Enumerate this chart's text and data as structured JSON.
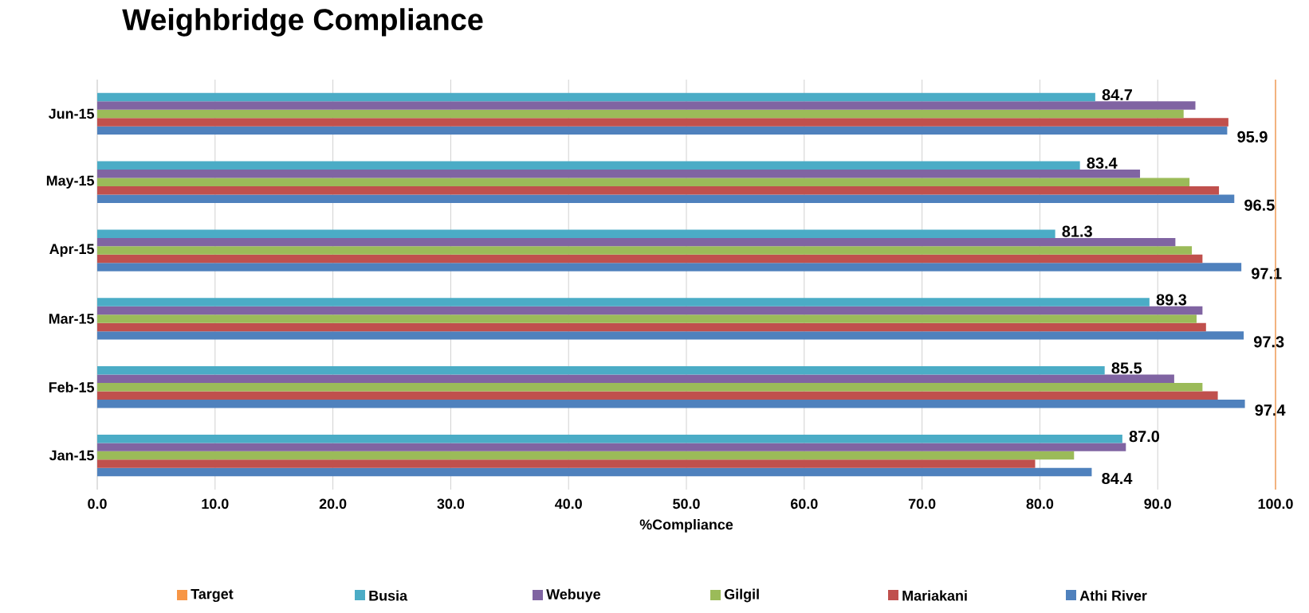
{
  "chart_data": {
    "type": "bar",
    "orientation": "horizontal",
    "title": "Weighbridge Compliance",
    "xlabel": "%Compliance",
    "categories": [
      "Jun-15",
      "May-15",
      "Apr-15",
      "Mar-15",
      "Feb-15",
      "Jan-15"
    ],
    "series": [
      {
        "name": "Athi River",
        "color": "#4f81bd",
        "values": [
          95.9,
          96.5,
          97.1,
          97.3,
          97.4,
          84.4
        ],
        "value_labels": [
          "95.9",
          "96.5",
          "97.1",
          "97.3",
          "97.4",
          "84.4"
        ]
      },
      {
        "name": "Mariakani",
        "color": "#c0504d",
        "values": [
          96.0,
          95.2,
          93.8,
          94.1,
          95.1,
          79.6
        ]
      },
      {
        "name": "Gilgil",
        "color": "#9bbb59",
        "values": [
          92.2,
          92.7,
          92.9,
          93.3,
          93.8,
          82.9
        ]
      },
      {
        "name": "Webuye",
        "color": "#8064a2",
        "values": [
          93.2,
          88.5,
          91.5,
          93.8,
          91.4,
          87.3
        ]
      },
      {
        "name": "Busia",
        "color": "#4bacc6",
        "values": [
          84.7,
          83.4,
          81.3,
          89.3,
          85.5,
          87.0
        ],
        "value_labels": [
          "84.7",
          "83.4",
          "81.3",
          "89.3",
          "85.5",
          "87.0"
        ]
      }
    ],
    "ref_lines": [
      {
        "axis": "x",
        "value": 100,
        "label": "Target",
        "color": "#f79646"
      }
    ],
    "xlim": [
      0,
      100
    ],
    "xticks": [
      {
        "value": 0,
        "label": "0.0"
      },
      {
        "value": 10,
        "label": "10.0"
      },
      {
        "value": 20,
        "label": "20.0"
      },
      {
        "value": 30,
        "label": "30.0"
      },
      {
        "value": 40,
        "label": "40.0"
      },
      {
        "value": 50,
        "label": "50.0"
      },
      {
        "value": 60,
        "label": "60.0"
      },
      {
        "value": 70,
        "label": "70.0"
      },
      {
        "value": 80,
        "label": "80.0"
      },
      {
        "value": 90,
        "label": "90.0"
      },
      {
        "value": 100,
        "label": "100.0"
      }
    ],
    "grid": "x",
    "legend": "bottom"
  }
}
